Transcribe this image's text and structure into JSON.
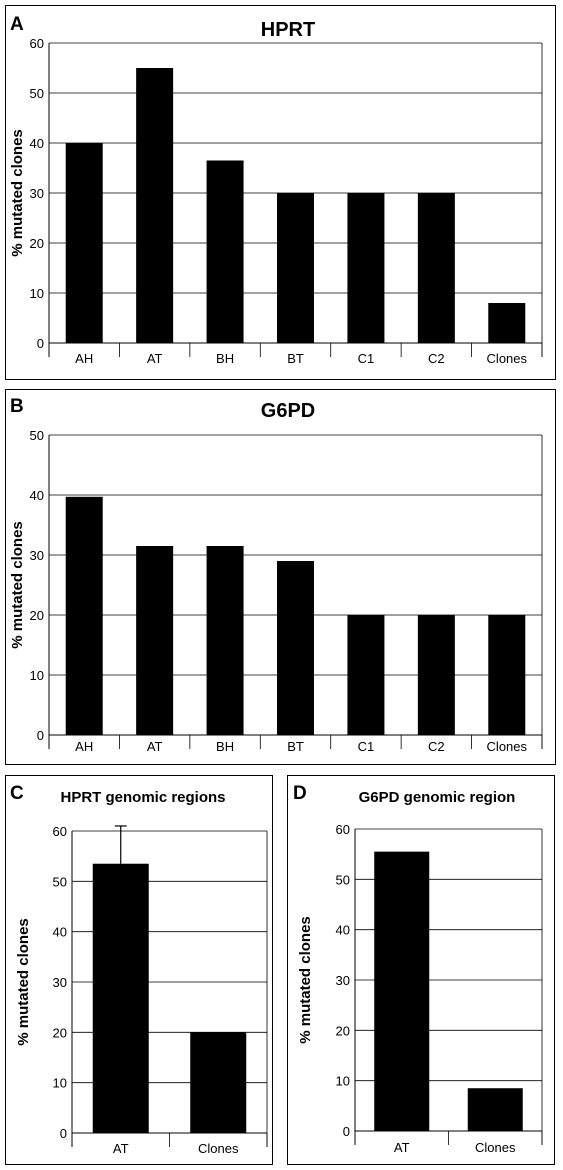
{
  "chart_data": [
    {
      "panel": "A",
      "type": "bar",
      "title": "HPRT",
      "ylabel": "% mutated clones",
      "xlabel": "",
      "categories": [
        "AH",
        "AT",
        "BH",
        "BT",
        "C1",
        "C2",
        "Clones"
      ],
      "values": [
        40,
        55,
        36.5,
        30,
        30,
        30,
        8
      ],
      "ylim": [
        0,
        60
      ],
      "yticks": [
        0,
        10,
        20,
        30,
        40,
        50,
        60
      ],
      "grid": true,
      "bar_color": "#000000"
    },
    {
      "panel": "B",
      "type": "bar",
      "title": "G6PD",
      "ylabel": "% mutated clones",
      "xlabel": "",
      "categories": [
        "AH",
        "AT",
        "BH",
        "BT",
        "C1",
        "C2",
        "Clones"
      ],
      "values": [
        39.7,
        31.5,
        31.5,
        29,
        20,
        20,
        20
      ],
      "ylim": [
        0,
        50
      ],
      "yticks": [
        0,
        10,
        20,
        30,
        40,
        50
      ],
      "grid": true,
      "bar_color": "#000000"
    },
    {
      "panel": "C",
      "type": "bar",
      "title": "HPRT genomic regions",
      "ylabel": "% mutated clones",
      "xlabel": "",
      "categories": [
        "AT",
        "Clones"
      ],
      "values": [
        53.5,
        20
      ],
      "error_bars": [
        7.5,
        0
      ],
      "ylim": [
        0,
        60
      ],
      "yticks": [
        0,
        10,
        20,
        30,
        40,
        50,
        60
      ],
      "grid": true,
      "bar_color": "#000000"
    },
    {
      "panel": "D",
      "type": "bar",
      "title": "G6PD genomic region",
      "ylabel": "% mutated clones",
      "xlabel": "",
      "categories": [
        "AT",
        "Clones"
      ],
      "values": [
        55.5,
        8.5
      ],
      "ylim": [
        0,
        60
      ],
      "yticks": [
        0,
        10,
        20,
        30,
        40,
        50,
        60
      ],
      "grid": true,
      "bar_color": "#000000"
    }
  ]
}
